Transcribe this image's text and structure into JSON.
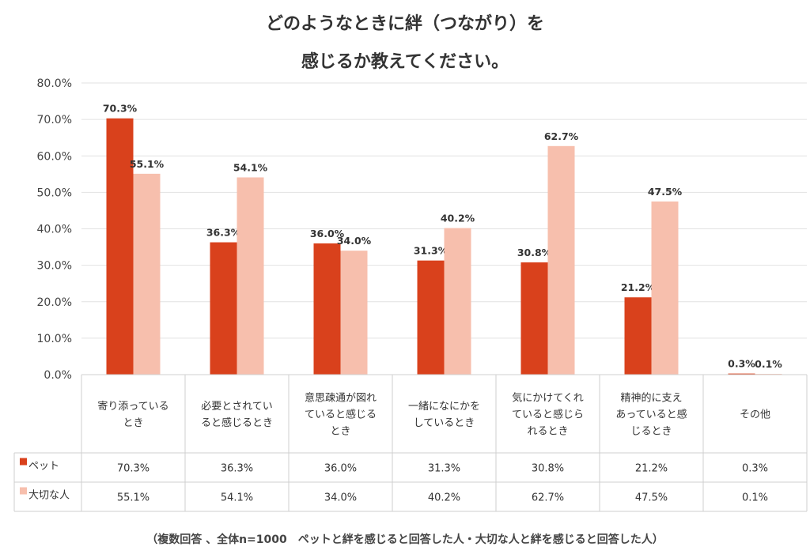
{
  "chart_data": {
    "type": "bar",
    "title_line1": "どのようなときに絆（つながり）を",
    "title_line2": "感じるか教えてください。",
    "categories": [
      [
        "寄り添っている",
        "とき"
      ],
      [
        "必要とされてい",
        "ると感じるとき"
      ],
      [
        "意思疎通が図れ",
        "ていると感じる",
        "とき"
      ],
      [
        "一緒になにかを",
        "しているとき"
      ],
      [
        "気にかけてくれ",
        "ていると感じら",
        "れるとき"
      ],
      [
        "精神的に支え",
        "あっていると感",
        "じるとき"
      ],
      [
        "その他"
      ]
    ],
    "series": [
      {
        "name": "ペット",
        "color": "#d9411c",
        "values": [
          70.3,
          36.3,
          36.0,
          31.3,
          30.8,
          21.2,
          0.3
        ]
      },
      {
        "name": "大切な人",
        "color": "#f7bfad",
        "values": [
          55.1,
          54.1,
          34.0,
          40.2,
          62.7,
          47.5,
          0.1
        ]
      }
    ],
    "ylim": [
      0,
      80
    ],
    "y_ticks": [
      "0.0%",
      "10.0%",
      "20.0%",
      "30.0%",
      "40.0%",
      "50.0%",
      "60.0%",
      "70.0%",
      "80.0%"
    ],
    "grid": true,
    "data_table": true
  },
  "footnote": "（複数回答 、全体n=1000　ペットと絆を感じると回答した人・大切な人と絆を感じると回答した人）"
}
